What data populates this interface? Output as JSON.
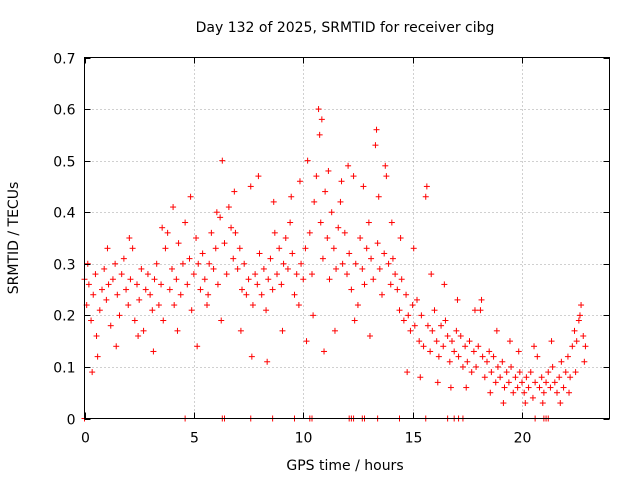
{
  "chart_data": {
    "type": "scatter",
    "title": "Day 132 of 2025, SRMTID for receiver cibg",
    "xlabel": "GPS time / hours",
    "ylabel": "SRMTID / TECUs",
    "xlim": [
      0,
      24
    ],
    "ylim": [
      0,
      0.7
    ],
    "x_ticks": [
      0,
      5,
      10,
      15,
      20
    ],
    "x_tick_labels": [
      "0",
      "5",
      "10",
      "15",
      "20"
    ],
    "y_ticks": [
      0,
      0.1,
      0.2,
      0.3,
      0.4,
      0.5,
      0.6,
      0.7
    ],
    "y_tick_labels": [
      "0",
      "0.1",
      "0.2",
      "0.3",
      "0.4",
      "0.5",
      "0.6",
      "0.7"
    ],
    "grid": true,
    "marker": "+",
    "color": "#ff0000",
    "series": [
      {
        "name": "SRMTID",
        "points": [
          [
            0.0,
            0.27
          ],
          [
            0.1,
            0.22
          ],
          [
            0.2,
            0.26
          ],
          [
            0.3,
            0.19
          ],
          [
            0.4,
            0.24
          ],
          [
            0.5,
            0.28
          ],
          [
            0.6,
            0.12
          ],
          [
            0.7,
            0.21
          ],
          [
            0.8,
            0.25
          ],
          [
            0.9,
            0.29
          ],
          [
            1.0,
            0.23
          ],
          [
            1.1,
            0.26
          ],
          [
            1.2,
            0.18
          ],
          [
            1.3,
            0.27
          ],
          [
            1.4,
            0.3
          ],
          [
            1.5,
            0.24
          ],
          [
            1.6,
            0.2
          ],
          [
            1.7,
            0.28
          ],
          [
            1.8,
            0.31
          ],
          [
            1.9,
            0.25
          ],
          [
            2.0,
            0.22
          ],
          [
            2.1,
            0.27
          ],
          [
            2.2,
            0.33
          ],
          [
            2.3,
            0.19
          ],
          [
            2.4,
            0.26
          ],
          [
            2.5,
            0.23
          ],
          [
            2.6,
            0.29
          ],
          [
            2.7,
            0.17
          ],
          [
            2.8,
            0.25
          ],
          [
            2.9,
            0.28
          ],
          [
            3.0,
            0.24
          ],
          [
            3.1,
            0.21
          ],
          [
            3.2,
            0.27
          ],
          [
            3.3,
            0.3
          ],
          [
            3.4,
            0.22
          ],
          [
            3.5,
            0.26
          ],
          [
            3.6,
            0.19
          ],
          [
            3.7,
            0.33
          ],
          [
            3.8,
            0.36
          ],
          [
            3.9,
            0.25
          ],
          [
            4.0,
            0.29
          ],
          [
            4.1,
            0.22
          ],
          [
            4.2,
            0.27
          ],
          [
            4.3,
            0.34
          ],
          [
            4.4,
            0.24
          ],
          [
            4.5,
            0.3
          ],
          [
            4.6,
            0.38
          ],
          [
            4.7,
            0.26
          ],
          [
            4.8,
            0.31
          ],
          [
            4.9,
            0.21
          ],
          [
            5.0,
            0.28
          ],
          [
            5.1,
            0.35
          ],
          [
            5.2,
            0.3
          ],
          [
            5.3,
            0.25
          ],
          [
            5.4,
            0.32
          ],
          [
            5.5,
            0.27
          ],
          [
            5.6,
            0.22
          ],
          [
            5.7,
            0.3
          ],
          [
            5.8,
            0.36
          ],
          [
            5.9,
            0.29
          ],
          [
            6.0,
            0.33
          ],
          [
            6.1,
            0.26
          ],
          [
            6.2,
            0.39
          ],
          [
            6.3,
            0.5
          ],
          [
            6.4,
            0.34
          ],
          [
            6.5,
            0.28
          ],
          [
            6.6,
            0.41
          ],
          [
            6.7,
            0.37
          ],
          [
            6.8,
            0.31
          ],
          [
            6.9,
            0.36
          ],
          [
            7.0,
            0.29
          ],
          [
            7.1,
            0.33
          ],
          [
            7.2,
            0.25
          ],
          [
            7.3,
            0.3
          ],
          [
            7.4,
            0.24
          ],
          [
            7.5,
            0.27
          ],
          [
            7.6,
            0.45
          ],
          [
            7.7,
            0.22
          ],
          [
            7.8,
            0.28
          ],
          [
            7.9,
            0.26
          ],
          [
            8.0,
            0.32
          ],
          [
            8.1,
            0.24
          ],
          [
            8.2,
            0.29
          ],
          [
            8.3,
            0.21
          ],
          [
            8.4,
            0.27
          ],
          [
            8.5,
            0.31
          ],
          [
            8.6,
            0.25
          ],
          [
            8.7,
            0.36
          ],
          [
            8.8,
            0.28
          ],
          [
            8.9,
            0.33
          ],
          [
            9.0,
            0.26
          ],
          [
            9.1,
            0.3
          ],
          [
            9.2,
            0.35
          ],
          [
            9.3,
            0.29
          ],
          [
            9.4,
            0.38
          ],
          [
            9.5,
            0.32
          ],
          [
            9.6,
            0.24
          ],
          [
            9.7,
            0.28
          ],
          [
            9.8,
            0.22
          ],
          [
            9.9,
            0.3
          ],
          [
            10.0,
            0.27
          ],
          [
            10.1,
            0.33
          ],
          [
            10.2,
            0.5
          ],
          [
            10.3,
            0.36
          ],
          [
            10.4,
            0.28
          ],
          [
            10.5,
            0.42
          ],
          [
            10.6,
            0.47
          ],
          [
            10.7,
            0.6
          ],
          [
            10.8,
            0.38
          ],
          [
            10.9,
            0.31
          ],
          [
            11.0,
            0.44
          ],
          [
            11.1,
            0.35
          ],
          [
            11.2,
            0.27
          ],
          [
            11.3,
            0.4
          ],
          [
            11.4,
            0.33
          ],
          [
            11.5,
            0.29
          ],
          [
            11.6,
            0.37
          ],
          [
            11.7,
            0.42
          ],
          [
            11.8,
            0.3
          ],
          [
            11.9,
            0.36
          ],
          [
            12.0,
            0.28
          ],
          [
            12.1,
            0.32
          ],
          [
            12.2,
            0.25
          ],
          [
            12.3,
            0.47
          ],
          [
            12.4,
            0.3
          ],
          [
            12.5,
            0.22
          ],
          [
            12.6,
            0.35
          ],
          [
            12.7,
            0.29
          ],
          [
            12.8,
            0.26
          ],
          [
            12.9,
            0.33
          ],
          [
            13.0,
            0.38
          ],
          [
            13.1,
            0.31
          ],
          [
            13.2,
            0.27
          ],
          [
            13.3,
            0.53
          ],
          [
            13.4,
            0.34
          ],
          [
            13.5,
            0.29
          ],
          [
            13.6,
            0.24
          ],
          [
            13.7,
            0.32
          ],
          [
            13.8,
            0.47
          ],
          [
            13.9,
            0.3
          ],
          [
            14.0,
            0.26
          ],
          [
            14.1,
            0.31
          ],
          [
            14.2,
            0.28
          ],
          [
            14.3,
            0.25
          ],
          [
            14.4,
            0.21
          ],
          [
            14.5,
            0.27
          ],
          [
            14.6,
            0.19
          ],
          [
            14.7,
            0.24
          ],
          [
            14.8,
            0.2
          ],
          [
            14.9,
            0.17
          ],
          [
            15.0,
            0.22
          ],
          [
            15.1,
            0.18
          ],
          [
            15.2,
            0.23
          ],
          [
            15.3,
            0.15
          ],
          [
            15.4,
            0.2
          ],
          [
            15.5,
            0.14
          ],
          [
            15.6,
            0.43
          ],
          [
            15.7,
            0.18
          ],
          [
            15.8,
            0.13
          ],
          [
            15.9,
            0.17
          ],
          [
            16.0,
            0.21
          ],
          [
            16.1,
            0.15
          ],
          [
            16.2,
            0.12
          ],
          [
            16.3,
            0.18
          ],
          [
            16.4,
            0.14
          ],
          [
            16.5,
            0.19
          ],
          [
            16.6,
            0.16
          ],
          [
            16.7,
            0.11
          ],
          [
            16.8,
            0.15
          ],
          [
            16.9,
            0.13
          ],
          [
            17.0,
            0.17
          ],
          [
            17.1,
            0.12
          ],
          [
            17.2,
            0.16
          ],
          [
            17.3,
            0.1
          ],
          [
            17.4,
            0.14
          ],
          [
            17.5,
            0.11
          ],
          [
            17.6,
            0.15
          ],
          [
            17.7,
            0.09
          ],
          [
            17.8,
            0.13
          ],
          [
            17.9,
            0.1
          ],
          [
            18.0,
            0.14
          ],
          [
            18.1,
            0.21
          ],
          [
            18.2,
            0.12
          ],
          [
            18.3,
            0.08
          ],
          [
            18.4,
            0.11
          ],
          [
            18.5,
            0.13
          ],
          [
            18.6,
            0.09
          ],
          [
            18.7,
            0.12
          ],
          [
            18.8,
            0.07
          ],
          [
            18.9,
            0.1
          ],
          [
            19.0,
            0.08
          ],
          [
            19.1,
            0.11
          ],
          [
            19.2,
            0.06
          ],
          [
            19.3,
            0.09
          ],
          [
            19.4,
            0.07
          ],
          [
            19.5,
            0.1
          ],
          [
            19.6,
            0.05
          ],
          [
            19.7,
            0.08
          ],
          [
            19.8,
            0.06
          ],
          [
            19.9,
            0.09
          ],
          [
            20.0,
            0.07
          ],
          [
            20.1,
            0.05
          ],
          [
            20.2,
            0.08
          ],
          [
            20.3,
            0.06
          ],
          [
            20.4,
            0.09
          ],
          [
            20.5,
            0.04
          ],
          [
            20.6,
            0.07
          ],
          [
            20.7,
            0.12
          ],
          [
            20.8,
            0.06
          ],
          [
            20.9,
            0.08
          ],
          [
            21.0,
            0.05
          ],
          [
            21.1,
            0.07
          ],
          [
            21.2,
            0.09
          ],
          [
            21.3,
            0.06
          ],
          [
            21.4,
            0.1
          ],
          [
            21.5,
            0.07
          ],
          [
            21.6,
            0.05
          ],
          [
            21.7,
            0.08
          ],
          [
            21.8,
            0.11
          ],
          [
            21.9,
            0.06
          ],
          [
            22.0,
            0.09
          ],
          [
            22.1,
            0.12
          ],
          [
            22.2,
            0.08
          ],
          [
            22.3,
            0.14
          ],
          [
            22.4,
            0.17
          ],
          [
            22.5,
            0.15
          ],
          [
            22.6,
            0.19
          ],
          [
            22.7,
            0.22
          ],
          [
            22.8,
            0.16
          ],
          [
            22.9,
            0.14
          ],
          [
            0.15,
            0.3
          ],
          [
            0.35,
            0.09
          ],
          [
            0.55,
            0.16
          ],
          [
            1.05,
            0.33
          ],
          [
            1.45,
            0.14
          ],
          [
            2.05,
            0.35
          ],
          [
            2.45,
            0.16
          ],
          [
            3.15,
            0.13
          ],
          [
            3.55,
            0.37
          ],
          [
            4.05,
            0.41
          ],
          [
            4.25,
            0.17
          ],
          [
            4.85,
            0.43
          ],
          [
            5.15,
            0.14
          ],
          [
            5.65,
            0.24
          ],
          [
            6.05,
            0.4
          ],
          [
            6.25,
            0.19
          ],
          [
            6.85,
            0.44
          ],
          [
            7.15,
            0.17
          ],
          [
            7.65,
            0.12
          ],
          [
            7.95,
            0.47
          ],
          [
            8.35,
            0.11
          ],
          [
            8.65,
            0.42
          ],
          [
            9.05,
            0.17
          ],
          [
            9.45,
            0.43
          ],
          [
            9.85,
            0.46
          ],
          [
            10.15,
            0.15
          ],
          [
            10.45,
            0.2
          ],
          [
            10.75,
            0.55
          ],
          [
            10.85,
            0.58
          ],
          [
            10.95,
            0.13
          ],
          [
            11.15,
            0.48
          ],
          [
            11.45,
            0.17
          ],
          [
            11.75,
            0.46
          ],
          [
            12.05,
            0.49
          ],
          [
            12.35,
            0.19
          ],
          [
            12.75,
            0.45
          ],
          [
            13.05,
            0.16
          ],
          [
            13.35,
            0.56
          ],
          [
            13.45,
            0.43
          ],
          [
            13.75,
            0.49
          ],
          [
            14.05,
            0.38
          ],
          [
            14.45,
            0.35
          ],
          [
            14.75,
            0.09
          ],
          [
            15.05,
            0.33
          ],
          [
            15.35,
            0.08
          ],
          [
            15.65,
            0.45
          ],
          [
            15.85,
            0.28
          ],
          [
            16.15,
            0.07
          ],
          [
            16.45,
            0.26
          ],
          [
            16.75,
            0.06
          ],
          [
            17.05,
            0.23
          ],
          [
            17.45,
            0.06
          ],
          [
            17.85,
            0.21
          ],
          [
            18.15,
            0.23
          ],
          [
            18.55,
            0.05
          ],
          [
            18.85,
            0.17
          ],
          [
            19.15,
            0.03
          ],
          [
            19.45,
            0.15
          ],
          [
            19.85,
            0.13
          ],
          [
            20.15,
            0.03
          ],
          [
            20.55,
            0.14
          ],
          [
            20.95,
            0.03
          ],
          [
            21.35,
            0.15
          ],
          [
            21.75,
            0.03
          ],
          [
            22.15,
            0.05
          ],
          [
            22.45,
            0.09
          ],
          [
            22.65,
            0.2
          ],
          [
            22.85,
            0.11
          ]
        ]
      }
    ],
    "zero_points_x": [
      0.0,
      4.6,
      6.3,
      6.4,
      7.6,
      8.6,
      9.6,
      10.3,
      10.4,
      12.1,
      12.2,
      12.3,
      12.7,
      12.8,
      13.4,
      14.4,
      15.6,
      16.6,
      16.9,
      17.1,
      17.3,
      20.6,
      21.0,
      21.1,
      21.2
    ]
  }
}
